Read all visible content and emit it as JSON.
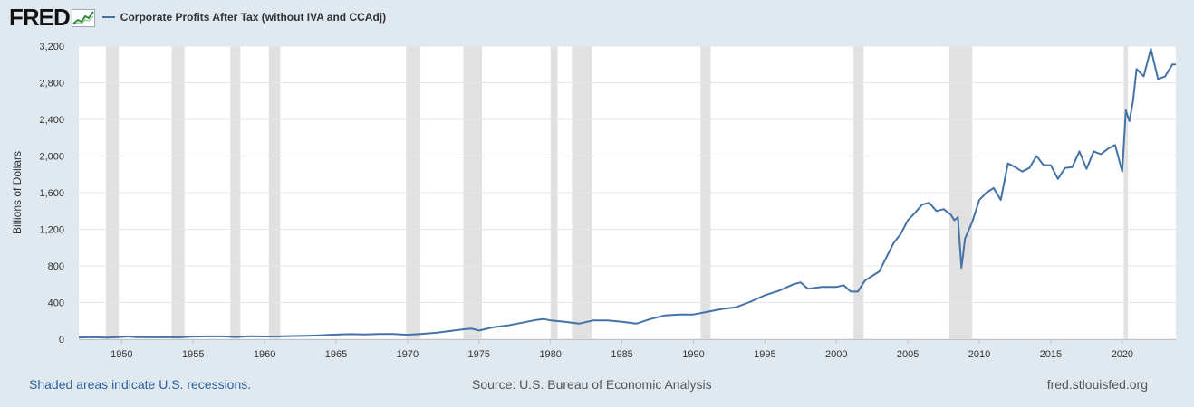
{
  "header": {
    "logo_text": "FRED",
    "series_title": "Corporate Profits After Tax (without IVA and CCAdj)"
  },
  "footer": {
    "recession_note": "Shaded areas indicate U.S. recessions.",
    "source": "Source: U.S. Bureau of Economic Analysis",
    "site": "fred.stlouisfed.org"
  },
  "colors": {
    "background": "#e1e9f0",
    "plot_background": "#ffffff",
    "line": "#4572a7",
    "recession": "#e1e1e1",
    "grid": "#e6e6e6"
  },
  "chart_data": {
    "type": "line",
    "title": "Corporate Profits After Tax (without IVA and CCAdj)",
    "xlabel": "",
    "ylabel": "Billions of Dollars",
    "xlim": [
      1947.0,
      2023.75
    ],
    "ylim": [
      0,
      3200
    ],
    "yticks": [
      0,
      400,
      800,
      1200,
      1600,
      2000,
      2400,
      2800,
      3200
    ],
    "ytick_labels": [
      "0",
      "400",
      "800",
      "1,200",
      "1,600",
      "2,000",
      "2,400",
      "2,800",
      "3,200"
    ],
    "xticks": [
      1950,
      1955,
      1960,
      1965,
      1970,
      1975,
      1980,
      1985,
      1990,
      1995,
      2000,
      2005,
      2010,
      2015,
      2020
    ],
    "xtick_labels": [
      "1950",
      "1955",
      "1960",
      "1965",
      "1970",
      "1975",
      "1980",
      "1985",
      "1990",
      "1995",
      "2000",
      "2005",
      "2010",
      "2015",
      "2020"
    ],
    "recessions": [
      [
        1948.9,
        1949.8
      ],
      [
        1953.5,
        1954.4
      ],
      [
        1957.6,
        1958.3
      ],
      [
        1960.3,
        1961.1
      ],
      [
        1969.9,
        1970.9
      ],
      [
        1973.9,
        1975.2
      ],
      [
        1980.0,
        1980.5
      ],
      [
        1981.5,
        1982.9
      ],
      [
        1990.5,
        1991.2
      ],
      [
        2001.2,
        2001.9
      ],
      [
        2007.9,
        2009.5
      ],
      [
        2020.1,
        2020.4
      ]
    ],
    "series": [
      {
        "name": "Corporate Profits After Tax (without IVA and CCAdj)",
        "x": [
          1947.0,
          1948.0,
          1949.0,
          1950.0,
          1950.5,
          1951.0,
          1952.0,
          1953.0,
          1954.0,
          1955.0,
          1956.0,
          1957.0,
          1958.0,
          1959.0,
          1960.0,
          1961.0,
          1962.0,
          1963.0,
          1964.0,
          1965.0,
          1966.0,
          1967.0,
          1968.0,
          1969.0,
          1970.0,
          1971.0,
          1972.0,
          1973.0,
          1974.0,
          1974.5,
          1975.0,
          1976.0,
          1977.0,
          1978.0,
          1979.0,
          1979.5,
          1980.0,
          1981.0,
          1982.0,
          1983.0,
          1984.0,
          1985.0,
          1986.0,
          1987.0,
          1988.0,
          1989.0,
          1990.0,
          1991.0,
          1992.0,
          1993.0,
          1994.0,
          1995.0,
          1996.0,
          1997.0,
          1997.5,
          1998.0,
          1999.0,
          2000.0,
          2000.5,
          2001.0,
          2001.5,
          2002.0,
          2003.0,
          2004.0,
          2004.5,
          2005.0,
          2005.5,
          2006.0,
          2006.5,
          2007.0,
          2007.5,
          2008.0,
          2008.25,
          2008.5,
          2008.75,
          2009.0,
          2009.5,
          2010.0,
          2010.5,
          2011.0,
          2011.5,
          2012.0,
          2012.5,
          2013.0,
          2013.5,
          2014.0,
          2014.5,
          2015.0,
          2015.5,
          2016.0,
          2016.5,
          2017.0,
          2017.5,
          2018.0,
          2018.5,
          2019.0,
          2019.5,
          2020.0,
          2020.25,
          2020.5,
          2020.75,
          2021.0,
          2021.5,
          2022.0,
          2022.5,
          2023.0,
          2023.5,
          2023.75
        ],
        "values": [
          19,
          22,
          18,
          25,
          30,
          22,
          21,
          23,
          21,
          29,
          31,
          31,
          25,
          33,
          30,
          31,
          35,
          38,
          43,
          50,
          55,
          52,
          56,
          57,
          48,
          58,
          70,
          90,
          110,
          115,
          95,
          130,
          150,
          180,
          210,
          220,
          205,
          190,
          170,
          205,
          205,
          190,
          170,
          220,
          260,
          270,
          270,
          300,
          330,
          350,
          410,
          480,
          530,
          600,
          620,
          550,
          570,
          570,
          590,
          520,
          520,
          640,
          740,
          1050,
          1150,
          1300,
          1380,
          1470,
          1490,
          1400,
          1420,
          1360,
          1300,
          1330,
          780,
          1100,
          1280,
          1520,
          1600,
          1650,
          1520,
          1920,
          1880,
          1830,
          1870,
          2000,
          1900,
          1900,
          1750,
          1870,
          1880,
          2050,
          1860,
          2050,
          2020,
          2080,
          2120,
          1830,
          2500,
          2380,
          2600,
          2950,
          2870,
          3170,
          2840,
          2870,
          3000,
          3000
        ]
      }
    ]
  }
}
